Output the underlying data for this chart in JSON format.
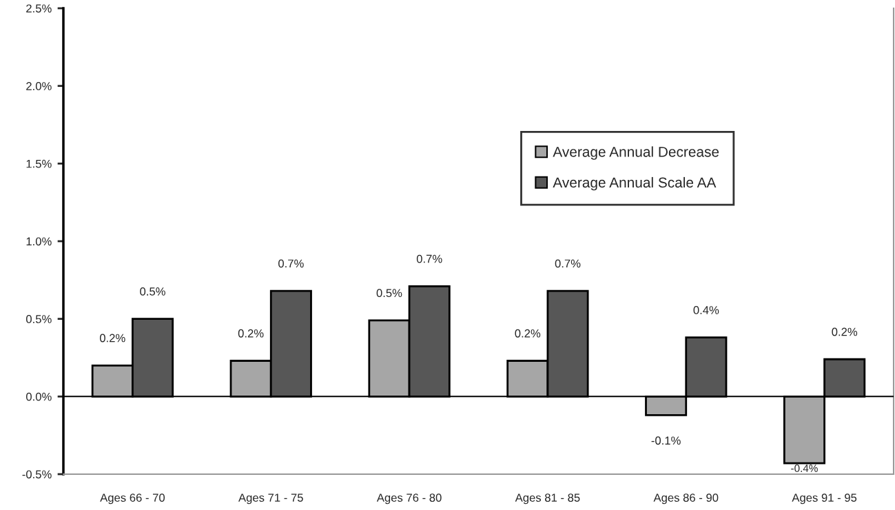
{
  "chart_data": {
    "type": "bar",
    "categories": [
      "Ages 66 - 70",
      "Ages 71 - 75",
      "Ages 76 - 80",
      "Ages 81 - 85",
      "Ages 86 - 90",
      "Ages 91 - 95"
    ],
    "series": [
      {
        "name": "Average Annual Decrease",
        "color": "#a6a6a6",
        "values": [
          0.2,
          0.23,
          0.49,
          0.23,
          -0.12,
          -0.43
        ],
        "value_labels": [
          "0.2%",
          "0.2%",
          "0.5%",
          "0.2%",
          "-0.1%",
          "-0.4%"
        ]
      },
      {
        "name": "Average Annual Scale AA",
        "color": "#575757",
        "values": [
          0.5,
          0.68,
          0.71,
          0.68,
          0.38,
          0.24
        ],
        "value_labels": [
          "0.5%",
          "0.7%",
          "0.7%",
          "0.7%",
          "0.4%",
          "0.2%"
        ]
      }
    ],
    "ylim": [
      -0.5,
      2.5
    ],
    "yticks": [
      {
        "value": -0.5,
        "label": "-0.5%"
      },
      {
        "value": 0.0,
        "label": "0.0%"
      },
      {
        "value": 0.5,
        "label": "0.5%"
      },
      {
        "value": 1.0,
        "label": "1.0%"
      },
      {
        "value": 1.5,
        "label": "1.5%"
      },
      {
        "value": 2.0,
        "label": "2.0%"
      },
      {
        "value": 2.5,
        "label": "2.5%"
      }
    ],
    "ref_lines": [
      {
        "axis": "y",
        "value": 0.0,
        "color": "#000000"
      }
    ],
    "grid": false,
    "legend": "top right"
  }
}
